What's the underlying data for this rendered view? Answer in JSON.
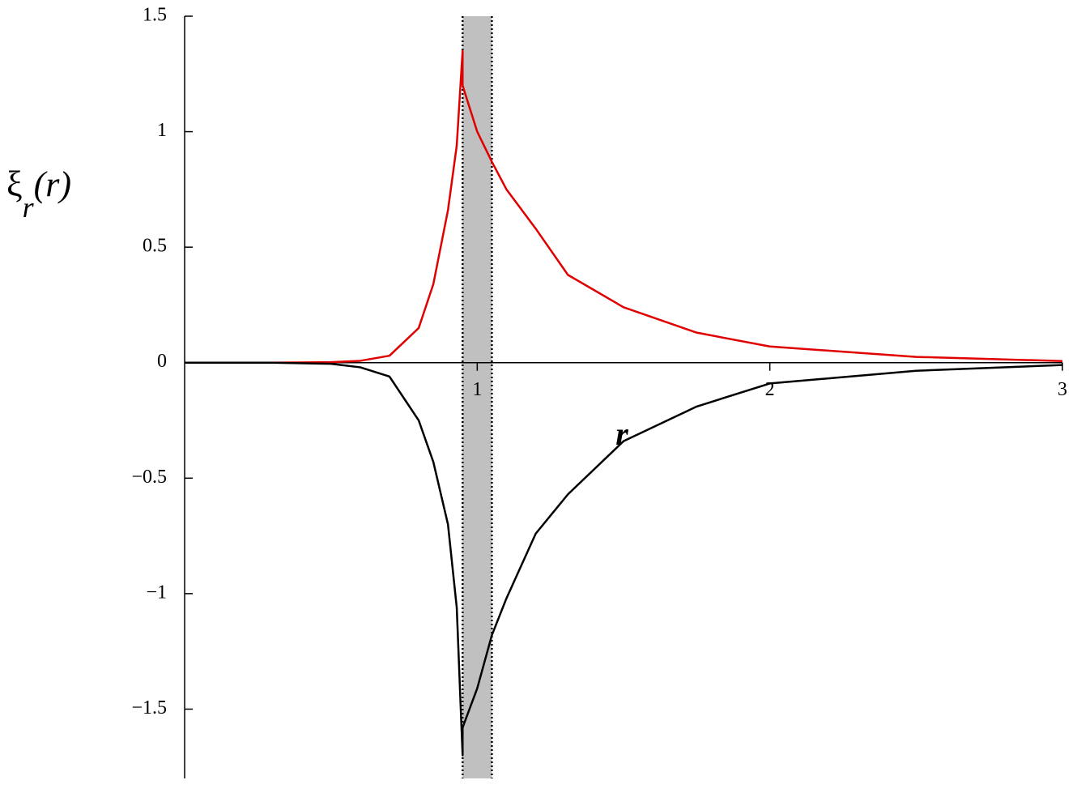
{
  "chart_data": {
    "type": "line",
    "xlabel": "r",
    "ylabel": [
      "ξ",
      "r",
      "(r)"
    ],
    "x": [
      0,
      0.3,
      0.5,
      0.6,
      0.7,
      0.8,
      0.85,
      0.9,
      0.93,
      0.95,
      0.95,
      1.0,
      1.05,
      1.1,
      1.2,
      1.31,
      1.5,
      1.75,
      2,
      2.5,
      3
    ],
    "series": [
      {
        "name": "red",
        "color": "#e00000",
        "values": [
          0,
          0,
          0.002,
          0.008,
          0.03,
          0.15,
          0.34,
          0.66,
          0.94,
          1.35,
          1.2,
          1.0,
          0.87,
          0.75,
          0.58,
          0.38,
          0.24,
          0.13,
          0.07,
          0.025,
          0.007
        ]
      },
      {
        "name": "black",
        "color": "#000000",
        "values": [
          0,
          0,
          -0.005,
          -0.02,
          -0.06,
          -0.25,
          -0.43,
          -0.7,
          -1.06,
          -1.7,
          -1.58,
          -1.41,
          -1.18,
          -1.02,
          -0.74,
          -0.57,
          -0.34,
          -0.19,
          -0.09,
          -0.035,
          -0.01
        ]
      }
    ],
    "shade": [
      0.95,
      1.05
    ],
    "xlim": [
      0,
      3
    ],
    "ylim": [
      -1.8,
      1.5
    ],
    "xticks": [
      1,
      2,
      3
    ],
    "yticks": [
      {
        "value": -1.5,
        "label": "−1.5"
      },
      {
        "value": -1,
        "label": "−1"
      },
      {
        "value": -0.5,
        "label": "−0.5"
      },
      0,
      0.5,
      1,
      1.5
    ]
  }
}
